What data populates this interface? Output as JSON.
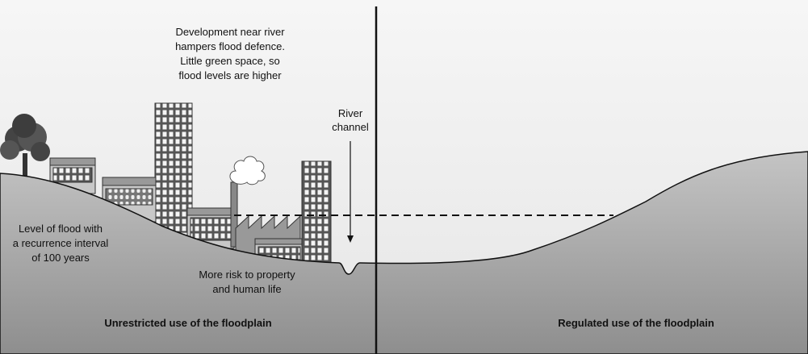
{
  "top_note": {
    "lines": [
      "Development near river",
      "hampers flood defence.",
      "Little green space, so",
      "flood levels are higher"
    ]
  },
  "channel_label": {
    "lines": [
      "River",
      "channel"
    ]
  },
  "flood_level_label": {
    "lines": [
      "Level of flood with",
      "a recurrence interval",
      "of 100 years"
    ]
  },
  "risk_label": {
    "lines": [
      "More risk to property",
      "and human life"
    ]
  },
  "left_caption": "Unrestricted use of the floodplain",
  "right_caption": "Regulated use of the floodplain"
}
